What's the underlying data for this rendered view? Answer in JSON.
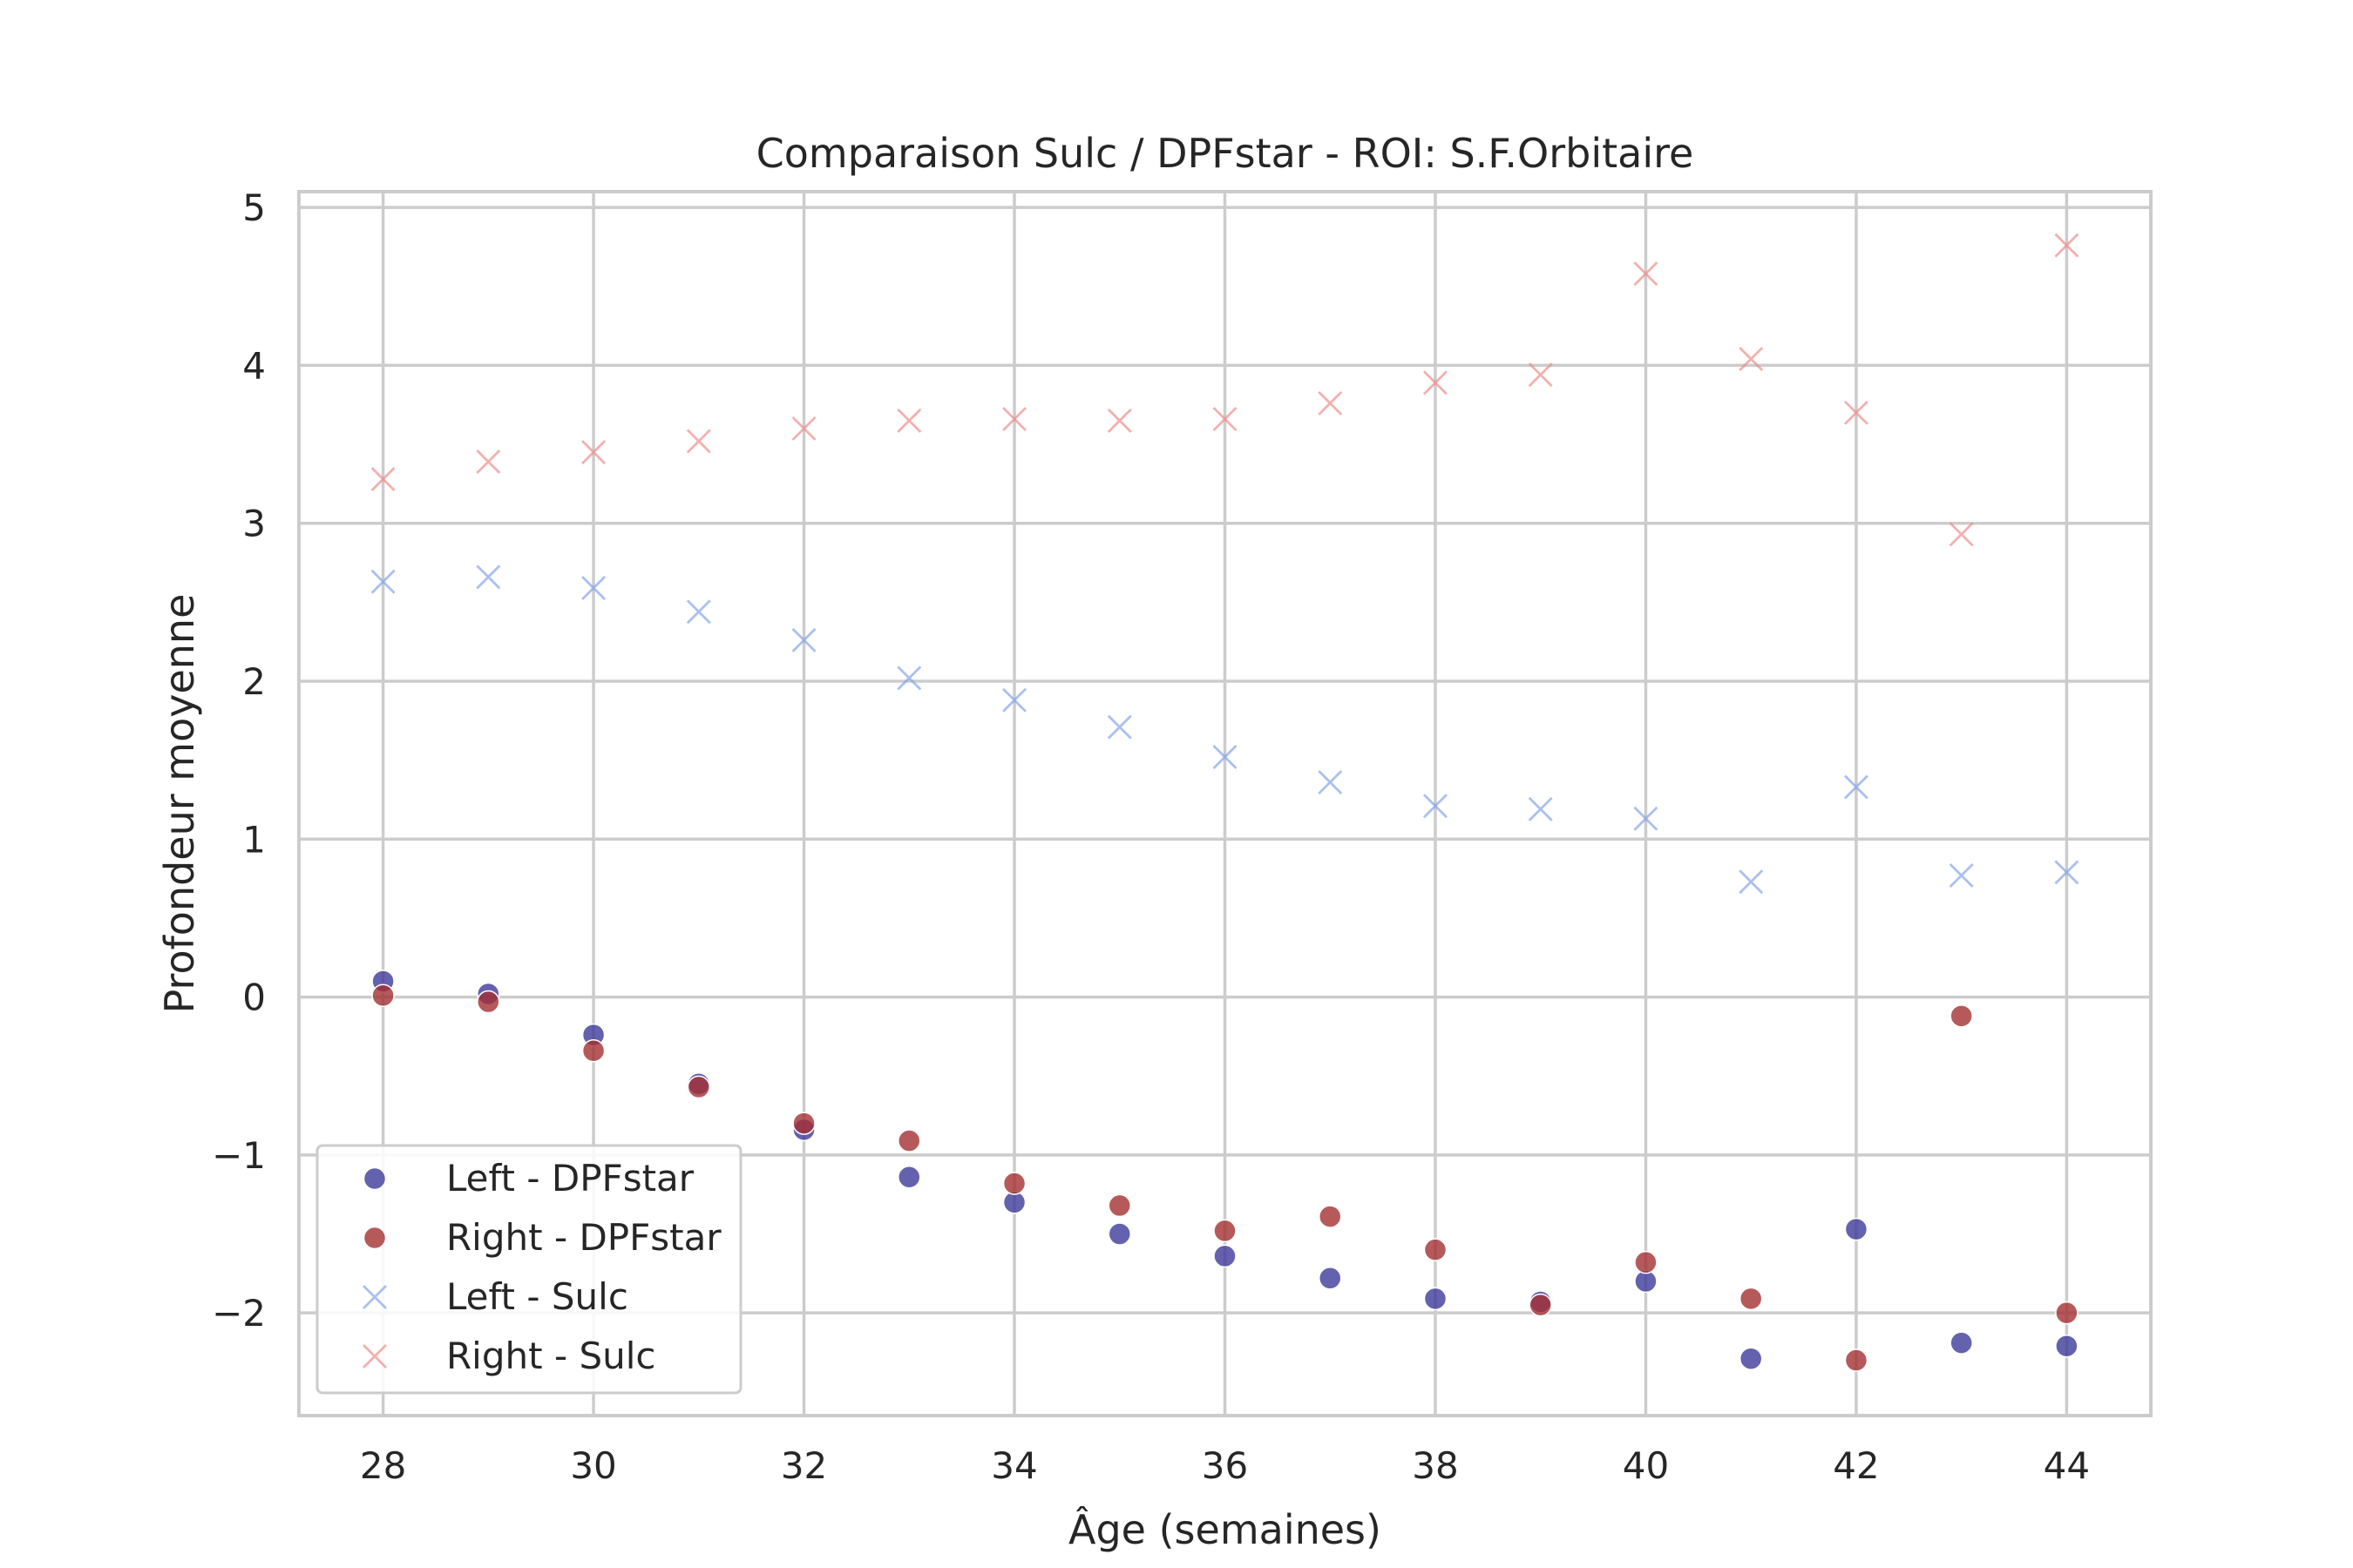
{
  "chart_data": {
    "type": "scatter",
    "title": "Comparaison Sulc / DPFstar - ROI: S.F.Orbitaire",
    "xlabel": "Âge (semaines)",
    "ylabel": "Profondeur moyenne",
    "xlim": [
      27.2,
      44.8
    ],
    "ylim": [
      -2.65,
      5.1
    ],
    "x_ticks": [
      28,
      30,
      32,
      34,
      36,
      38,
      40,
      42,
      44
    ],
    "x_tick_labels": [
      "28",
      "30",
      "32",
      "34",
      "36",
      "38",
      "40",
      "42",
      "44"
    ],
    "y_ticks": [
      -2,
      -1,
      0,
      1,
      2,
      3,
      4,
      5
    ],
    "y_tick_labels": [
      "−2",
      "−1",
      "0",
      "1",
      "2",
      "3",
      "4",
      "5"
    ],
    "grid": true,
    "legend_position": "lower-left",
    "series": [
      {
        "name": "Left - DPFstar",
        "marker": "circle",
        "color": "#3d3a9a",
        "opacity": 0.8,
        "x": [
          28,
          29,
          30,
          31,
          32,
          33,
          34,
          35,
          36,
          37,
          38,
          39,
          40,
          41,
          42,
          43,
          44
        ],
        "y": [
          0.1,
          0.02,
          -0.24,
          -0.55,
          -0.84,
          -1.14,
          -1.3,
          -1.5,
          -1.64,
          -1.78,
          -1.91,
          -1.93,
          -1.8,
          -2.29,
          -1.47,
          -2.19,
          -2.21
        ]
      },
      {
        "name": "Right - DPFstar",
        "marker": "circle",
        "color": "#a42f32",
        "opacity": 0.8,
        "x": [
          28,
          29,
          30,
          31,
          32,
          33,
          34,
          35,
          36,
          37,
          38,
          39,
          40,
          41,
          42,
          43,
          44
        ],
        "y": [
          0.01,
          -0.03,
          -0.34,
          -0.57,
          -0.8,
          -0.91,
          -1.18,
          -1.32,
          -1.48,
          -1.39,
          -1.6,
          -1.95,
          -1.68,
          -1.91,
          -2.3,
          -0.12,
          -2.0
        ]
      },
      {
        "name": "Left - Sulc",
        "marker": "x",
        "color": "#7c9ee8",
        "opacity": 0.65,
        "x": [
          28,
          29,
          30,
          31,
          32,
          33,
          34,
          35,
          36,
          37,
          38,
          39,
          40,
          41,
          42,
          43,
          44
        ],
        "y": [
          2.63,
          2.66,
          2.59,
          2.44,
          2.26,
          2.02,
          1.88,
          1.71,
          1.52,
          1.36,
          1.21,
          1.19,
          1.13,
          0.73,
          1.33,
          0.77,
          0.79
        ]
      },
      {
        "name": "Right - Sulc",
        "marker": "x",
        "color": "#ec8583",
        "opacity": 0.65,
        "x": [
          28,
          29,
          30,
          31,
          32,
          33,
          34,
          35,
          36,
          37,
          38,
          39,
          40,
          41,
          42,
          43,
          44
        ],
        "y": [
          3.28,
          3.39,
          3.45,
          3.52,
          3.6,
          3.65,
          3.66,
          3.65,
          3.66,
          3.76,
          3.89,
          3.94,
          4.58,
          4.04,
          3.7,
          2.93,
          4.76
        ]
      }
    ]
  }
}
